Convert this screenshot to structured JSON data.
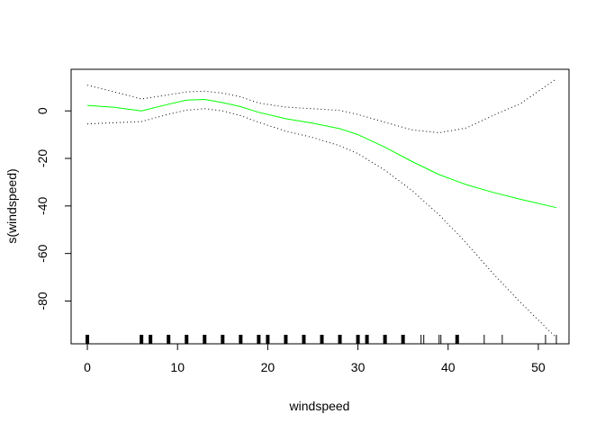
{
  "chart_data": {
    "type": "line",
    "title": "",
    "xlabel": "windspeed",
    "ylabel": "s(windspeed)",
    "xlim": [
      -1.8,
      53.4
    ],
    "ylim": [
      -98,
      17.5
    ],
    "xticks": [
      0,
      10,
      20,
      30,
      40,
      50
    ],
    "yticks": [
      0,
      -20,
      -40,
      -60,
      -80
    ],
    "grid": false,
    "legend": "none",
    "series": [
      {
        "role": "fit",
        "color": "#00ff00",
        "style": "solid",
        "x": [
          0,
          3,
          6,
          9,
          11,
          13,
          15,
          17,
          19,
          22,
          25,
          28,
          30,
          33,
          36,
          39,
          42,
          45,
          48,
          52
        ],
        "y": [
          2.3,
          1.5,
          0.0,
          2.8,
          4.5,
          4.8,
          3.5,
          1.8,
          -0.6,
          -3.3,
          -5.2,
          -7.5,
          -10.0,
          -15.3,
          -21.3,
          -26.8,
          -31.0,
          -34.3,
          -37.2,
          -40.7
        ]
      },
      {
        "role": "upper",
        "color": "#000000",
        "style": "dotted",
        "x": [
          0,
          3,
          6,
          9,
          11,
          13,
          15,
          17,
          19,
          22,
          25,
          28,
          30,
          33,
          36,
          39,
          42,
          45,
          48,
          52
        ],
        "y": [
          10.8,
          8.0,
          5.0,
          6.8,
          8.0,
          8.3,
          7.5,
          5.9,
          3.3,
          1.6,
          0.9,
          0.2,
          -1.5,
          -4.8,
          -8.0,
          -9.2,
          -7.2,
          -1.9,
          3.0,
          13.5
        ]
      },
      {
        "role": "lower",
        "color": "#000000",
        "style": "dotted",
        "x": [
          0,
          3,
          6,
          9,
          11,
          13,
          15,
          17,
          19,
          22,
          25,
          28,
          30,
          33,
          36,
          39,
          42,
          45,
          48,
          52
        ],
        "y": [
          -5.5,
          -5.0,
          -4.5,
          -1.4,
          0.3,
          0.9,
          0.0,
          -2.0,
          -4.8,
          -8.5,
          -11.2,
          -14.7,
          -18.0,
          -25.0,
          -33.5,
          -43.7,
          -55.5,
          -68.5,
          -80.5,
          -95.5
        ]
      }
    ],
    "rug": [
      0,
      6,
      7,
      9,
      11,
      13,
      15,
      17,
      19,
      20,
      22,
      24,
      26,
      28,
      30,
      31,
      33,
      35,
      37,
      37.3,
      39,
      39.2,
      41,
      44,
      46,
      50.8,
      52
    ],
    "rug_heavy": [
      true,
      true,
      true,
      true,
      true,
      true,
      true,
      true,
      true,
      true,
      true,
      true,
      true,
      true,
      true,
      true,
      true,
      true,
      false,
      false,
      false,
      false,
      true,
      false,
      false,
      false,
      false
    ]
  }
}
